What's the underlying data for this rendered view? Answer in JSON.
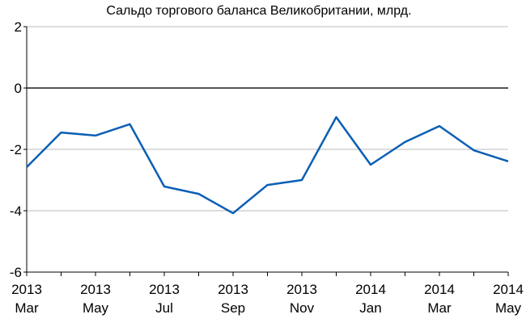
{
  "chart_data": {
    "type": "line",
    "title": "Сальдо торгового баланса Великобритании, млрд.",
    "categories": [
      [
        "2013",
        "Mar"
      ],
      null,
      [
        "2013",
        "May"
      ],
      null,
      [
        "2013",
        "Jul"
      ],
      null,
      [
        "2013",
        "Sep"
      ],
      null,
      [
        "2013",
        "Nov"
      ],
      null,
      [
        "2014",
        "Jan"
      ],
      null,
      [
        "2014",
        "Mar"
      ],
      null,
      [
        "2014",
        "May"
      ]
    ],
    "series": [
      {
        "name": "Сальдо",
        "color": "#0a5fb4",
        "values": [
          -2.58,
          -1.45,
          -1.55,
          -1.18,
          -3.21,
          -3.45,
          -4.08,
          -3.16,
          -3.0,
          -0.95,
          -2.5,
          -1.76,
          -1.24,
          -2.03,
          -2.39
        ]
      }
    ],
    "ylim": [
      -6,
      2
    ],
    "yticks": [
      -6,
      -4,
      -2,
      0,
      2
    ],
    "grid": true
  }
}
